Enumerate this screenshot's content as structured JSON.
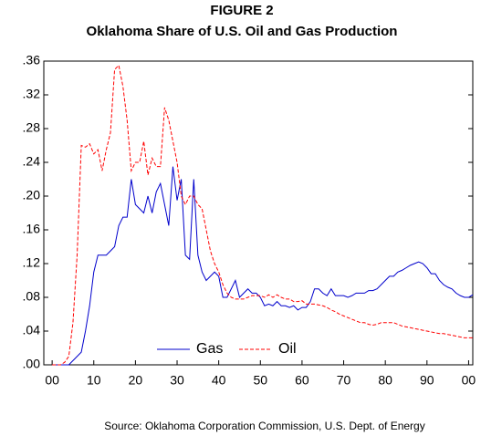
{
  "chart_data": {
    "type": "line",
    "title": "FIGURE 2",
    "subtitle": "Oklahoma Share of U.S. Oil and Gas Production",
    "source": "Source: Oklahoma Corporation Commission, U.S. Dept. of Energy",
    "x": [
      0,
      1,
      2,
      3,
      4,
      5,
      6,
      7,
      8,
      9,
      10,
      11,
      12,
      13,
      14,
      15,
      16,
      17,
      18,
      19,
      20,
      21,
      22,
      23,
      24,
      25,
      26,
      27,
      28,
      29,
      30,
      31,
      32,
      33,
      34,
      35,
      36,
      37,
      38,
      39,
      40,
      41,
      42,
      43,
      44,
      45,
      46,
      47,
      48,
      49,
      50,
      51,
      52,
      53,
      54,
      55,
      56,
      57,
      58,
      59,
      60,
      61,
      62,
      63,
      64,
      65,
      66,
      67,
      68,
      69,
      70,
      71,
      72,
      73,
      74,
      75,
      76,
      77,
      78,
      79,
      80,
      81,
      82,
      83,
      84,
      85,
      86,
      87,
      88,
      89,
      90,
      91,
      92,
      93,
      94,
      95,
      96,
      97,
      98,
      99,
      100,
      101
    ],
    "series": [
      {
        "name": "Gas",
        "color": "#0000cc",
        "dashed": false,
        "values": [
          0,
          0,
          0,
          0,
          0,
          0.005,
          0.01,
          0.015,
          0.04,
          0.07,
          0.11,
          0.13,
          0.13,
          0.13,
          0.135,
          0.14,
          0.165,
          0.175,
          0.175,
          0.22,
          0.19,
          0.185,
          0.18,
          0.2,
          0.18,
          0.205,
          0.215,
          0.19,
          0.165,
          0.235,
          0.195,
          0.22,
          0.13,
          0.125,
          0.22,
          0.13,
          0.11,
          0.1,
          0.105,
          0.11,
          0.105,
          0.08,
          0.08,
          0.09,
          0.1,
          0.08,
          0.085,
          0.09,
          0.085,
          0.085,
          0.08,
          0.07,
          0.072,
          0.07,
          0.075,
          0.07,
          0.07,
          0.068,
          0.07,
          0.065,
          0.068,
          0.068,
          0.075,
          0.09,
          0.09,
          0.085,
          0.082,
          0.09,
          0.082,
          0.082,
          0.082,
          0.08,
          0.082,
          0.085,
          0.085,
          0.085,
          0.088,
          0.088,
          0.09,
          0.095,
          0.1,
          0.105,
          0.105,
          0.11,
          0.112,
          0.115,
          0.118,
          0.12,
          0.122,
          0.12,
          0.115,
          0.108,
          0.108,
          0.1,
          0.095,
          0.092,
          0.09,
          0.085,
          0.082,
          0.08,
          0.08,
          0.083
        ]
      },
      {
        "name": "Oil",
        "color": "#ff0000",
        "dashed": true,
        "values": [
          0,
          0,
          0,
          0.003,
          0.01,
          0.05,
          0.13,
          0.26,
          0.258,
          0.262,
          0.25,
          0.255,
          0.23,
          0.255,
          0.275,
          0.35,
          0.355,
          0.33,
          0.29,
          0.23,
          0.24,
          0.24,
          0.265,
          0.225,
          0.245,
          0.235,
          0.235,
          0.305,
          0.29,
          0.265,
          0.24,
          0.2,
          0.19,
          0.2,
          0.2,
          0.19,
          0.185,
          0.16,
          0.135,
          0.12,
          0.11,
          0.095,
          0.085,
          0.08,
          0.078,
          0.078,
          0.078,
          0.08,
          0.082,
          0.082,
          0.082,
          0.08,
          0.083,
          0.08,
          0.083,
          0.08,
          0.078,
          0.078,
          0.075,
          0.075,
          0.076,
          0.072,
          0.072,
          0.072,
          0.071,
          0.07,
          0.068,
          0.065,
          0.063,
          0.06,
          0.058,
          0.056,
          0.054,
          0.052,
          0.05,
          0.05,
          0.048,
          0.047,
          0.048,
          0.05,
          0.05,
          0.05,
          0.05,
          0.048,
          0.046,
          0.045,
          0.044,
          0.043,
          0.042,
          0.041,
          0.04,
          0.039,
          0.038,
          0.037,
          0.037,
          0.036,
          0.035,
          0.034,
          0.033,
          0.032,
          0.032,
          0.032
        ]
      }
    ],
    "xlim": [
      -2,
      101
    ],
    "xticks": [
      {
        "value": 0,
        "label": "00"
      },
      10,
      20,
      30,
      40,
      50,
      60,
      70,
      80,
      90,
      {
        "value": 100,
        "label": "00"
      }
    ],
    "ylim": [
      0,
      0.36
    ],
    "yticks": [
      {
        "value": 0,
        "label": ".00"
      },
      {
        "value": 0.04,
        "label": ".04"
      },
      {
        "value": 0.08,
        "label": ".08"
      },
      {
        "value": 0.12,
        "label": ".12"
      },
      {
        "value": 0.16,
        "label": ".16"
      },
      {
        "value": 0.2,
        "label": ".20"
      },
      {
        "value": 0.24,
        "label": ".24"
      },
      {
        "value": 0.28,
        "label": ".28"
      },
      {
        "value": 0.32,
        "label": ".32"
      },
      {
        "value": 0.36,
        "label": ".36"
      }
    ],
    "grid": false,
    "legend": "bottom"
  }
}
